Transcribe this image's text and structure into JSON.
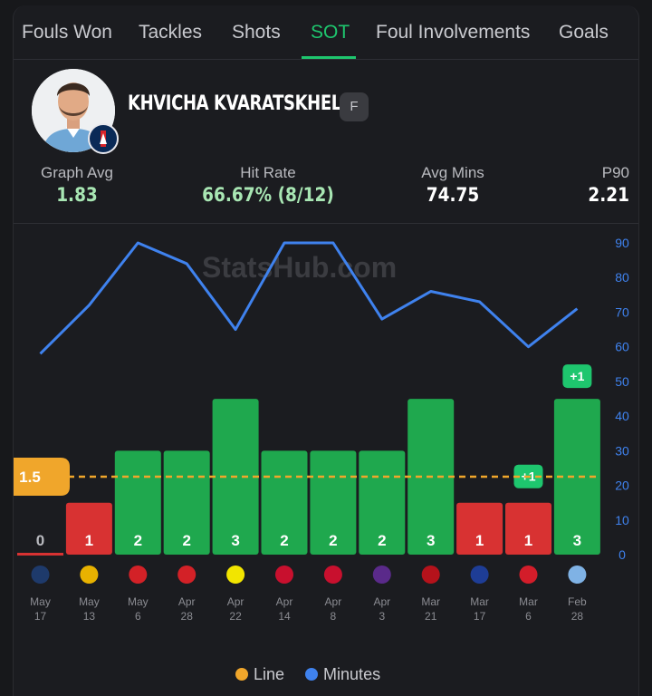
{
  "tabs": {
    "items": [
      "Fouls Won",
      "Tackles",
      "Shots",
      "SOT",
      "Foul Involvements",
      "Goals"
    ],
    "active": "SOT"
  },
  "player": {
    "name": "KHVICHA KVARATSKHELIA",
    "position": "F",
    "club_badge_icon": "psg-crest-icon"
  },
  "stats": [
    {
      "label": "Graph Avg",
      "value": "1.83"
    },
    {
      "label": "Hit Rate",
      "value": "66.67% (8/12)"
    },
    {
      "label": "Avg Mins",
      "value": "74.75"
    },
    {
      "label": "P90",
      "value": "2.21"
    }
  ],
  "watermark": "StatsHub.com",
  "colors": {
    "over": "#1fa84e",
    "under": "#d83232",
    "line": "#f0a62b",
    "minutes": "#3f82ee",
    "accent": "#1ec66e"
  },
  "legend": {
    "line_label": "Line",
    "minutes_label": "Minutes"
  },
  "chart_data": {
    "type": "bar",
    "line_value": 1.5,
    "line_label": "1.5",
    "ylim_right": [
      0,
      90
    ],
    "right_ticks": [
      0,
      10,
      20,
      30,
      40,
      50,
      60,
      70,
      80,
      90
    ],
    "games": [
      {
        "month": "May",
        "day": "17",
        "sot": 0,
        "minutes": 58,
        "opponent": "paris-fc-crest-icon"
      },
      {
        "month": "May",
        "day": "13",
        "sot": 1,
        "minutes": 72,
        "opponent": "lens-crest-icon"
      },
      {
        "month": "May",
        "day": "6",
        "sot": 2,
        "minutes": 90,
        "opponent": "bayern-crest-icon"
      },
      {
        "month": "Apr",
        "day": "28",
        "sot": 2,
        "minutes": 84,
        "opponent": "bayern-crest-icon"
      },
      {
        "month": "Apr",
        "day": "22",
        "sot": 3,
        "minutes": 65,
        "opponent": "nantes-crest-icon"
      },
      {
        "month": "Apr",
        "day": "14",
        "sot": 2,
        "minutes": 90,
        "opponent": "liverpool-crest-icon"
      },
      {
        "month": "Apr",
        "day": "8",
        "sot": 2,
        "minutes": 90,
        "opponent": "liverpool-crest-icon"
      },
      {
        "month": "Apr",
        "day": "3",
        "sot": 2,
        "minutes": 68,
        "opponent": "toulouse-crest-icon"
      },
      {
        "month": "Mar",
        "day": "21",
        "sot": 3,
        "minutes": 76,
        "opponent": "nice-crest-icon"
      },
      {
        "month": "Mar",
        "day": "17",
        "sot": 1,
        "minutes": 73,
        "opponent": "chelsea-crest-icon"
      },
      {
        "month": "Mar",
        "day": "6",
        "sot": 1,
        "minutes": 60,
        "opponent": "monaco-crest-icon",
        "badge": "+1"
      },
      {
        "month": "Feb",
        "day": "28",
        "sot": 3,
        "minutes": 71,
        "opponent": "le-havre-crest-icon",
        "badge": "+1"
      }
    ]
  }
}
